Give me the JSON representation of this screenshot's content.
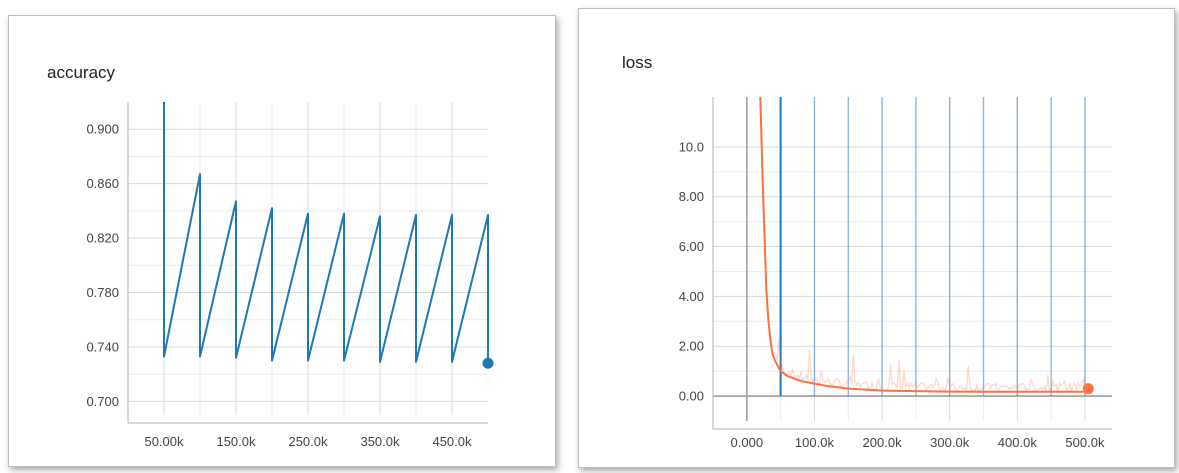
{
  "chart_data": [
    {
      "type": "line",
      "title": "accuracy",
      "xlabel": "",
      "ylabel": "",
      "xlim": [
        0,
        500000
      ],
      "ylim": [
        0.69,
        0.92
      ],
      "x_ticks": [
        50000,
        150000,
        250000,
        350000,
        450000
      ],
      "x_tick_labels": [
        "50.00k",
        "150.0k",
        "250.0k",
        "350.0k",
        "450.0k"
      ],
      "y_ticks": [
        0.7,
        0.74,
        0.78,
        0.82,
        0.86,
        0.9
      ],
      "y_tick_labels": [
        "0.700",
        "0.740",
        "0.780",
        "0.820",
        "0.860",
        "0.900"
      ],
      "grid": true,
      "series": [
        {
          "color": "#1f77b4",
          "x": [
            50000,
            50000,
            100000,
            100000,
            150000,
            150000,
            200000,
            200000,
            250000,
            250000,
            300000,
            300000,
            350000,
            350000,
            400000,
            400000,
            450000,
            450000,
            500000,
            500000
          ],
          "y": [
            0.92,
            0.733,
            0.867,
            0.733,
            0.847,
            0.732,
            0.842,
            0.73,
            0.838,
            0.73,
            0.838,
            0.73,
            0.836,
            0.729,
            0.837,
            0.729,
            0.837,
            0.729,
            0.837,
            0.728
          ],
          "end_marker": true
        }
      ]
    },
    {
      "type": "line",
      "title": "loss",
      "xlabel": "",
      "ylabel": "",
      "xlim": [
        -50000,
        540000
      ],
      "ylim": [
        -1,
        12
      ],
      "x_ticks": [
        0,
        100000,
        200000,
        300000,
        400000,
        500000
      ],
      "x_tick_labels": [
        "0.000",
        "100.0k",
        "200.0k",
        "300.0k",
        "400.0k",
        "500.0k"
      ],
      "y_ticks": [
        0,
        2,
        4,
        6,
        8,
        10
      ],
      "y_tick_labels": [
        "0.00",
        "2.00",
        "4.00",
        "6.00",
        "8.00",
        "10.0"
      ],
      "grid": true,
      "series": [
        {
          "color": "#ff7043",
          "x": [
            20000,
            23000,
            26000,
            29000,
            32000,
            35000,
            38000,
            42000,
            46000,
            50000,
            55000,
            60000,
            70000,
            80000,
            100000,
            120000,
            150000,
            200000,
            250000,
            300000,
            350000,
            400000,
            450000,
            500000,
            505000
          ],
          "y": [
            12.0,
            9.0,
            6.5,
            4.2,
            3.0,
            2.2,
            1.7,
            1.4,
            1.2,
            1.0,
            0.9,
            0.8,
            0.7,
            0.6,
            0.5,
            0.4,
            0.3,
            0.22,
            0.2,
            0.18,
            0.17,
            0.17,
            0.17,
            0.17,
            0.3
          ],
          "end_marker": true
        }
      ],
      "vertical_lines": {
        "color": "#1a78c2",
        "x": [
          50000,
          100000,
          150000,
          200000,
          250000,
          300000,
          350000,
          400000,
          450000,
          500000
        ]
      }
    }
  ]
}
